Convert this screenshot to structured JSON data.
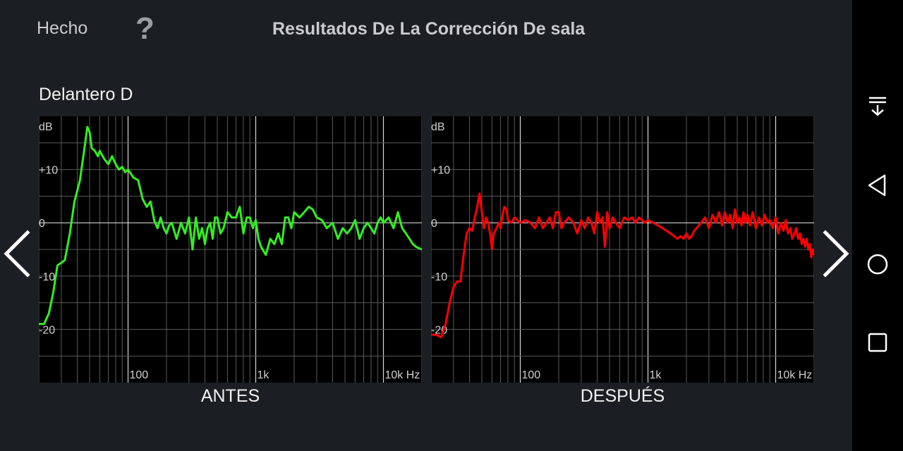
{
  "header": {
    "done_label": "Hecho",
    "help_label": "?",
    "title": "Resultados De La Corrección De sala"
  },
  "section": {
    "channel_label": "Delantero D"
  },
  "chart_data": [
    {
      "type": "line",
      "caption": "ANTES",
      "color": "#33ee22",
      "x_scale": "log",
      "xlim": [
        20,
        20000
      ],
      "ylim": [
        -30,
        20
      ],
      "y_unit_label": "dB",
      "y_ticks": [
        {
          "value": 10,
          "label": "+10"
        },
        {
          "value": 0,
          "label": "0"
        },
        {
          "value": -10,
          "label": "-10"
        },
        {
          "value": -20,
          "label": "-20"
        }
      ],
      "x_ticks": [
        {
          "value": 100,
          "label": "100"
        },
        {
          "value": 1000,
          "label": "1k"
        },
        {
          "value": 10000,
          "label": "10k Hz"
        }
      ],
      "grid": true,
      "series": [
        {
          "x": [
            20,
            22,
            24,
            26,
            28,
            30,
            32,
            35,
            38,
            40,
            42,
            45,
            48,
            50,
            52,
            55,
            58,
            60,
            65,
            70,
            75,
            80,
            85,
            90,
            95,
            100,
            110,
            120,
            130,
            140,
            150,
            160,
            170,
            180,
            190,
            200,
            210,
            220,
            240,
            260,
            280,
            300,
            320,
            340,
            360,
            380,
            400,
            420,
            440,
            460,
            480,
            500,
            530,
            560,
            600,
            650,
            700,
            750,
            800,
            850,
            900,
            950,
            1000,
            1050,
            1100,
            1200,
            1300,
            1400,
            1500,
            1600,
            1700,
            1800,
            1900,
            2000,
            2200,
            2400,
            2600,
            2800,
            3000,
            3300,
            3600,
            4000,
            4400,
            4800,
            5200,
            5600,
            6000,
            6500,
            7000,
            7500,
            8000,
            8500,
            9000,
            9500,
            10000,
            11000,
            12000,
            13000,
            14000,
            15000,
            16000,
            17000,
            18000,
            20000
          ],
          "y": [
            -19,
            -19,
            -17,
            -13,
            -8,
            -7.5,
            -7,
            -2,
            4,
            6,
            8,
            13,
            18,
            17,
            14,
            13.5,
            12.5,
            13.5,
            12,
            11,
            12.5,
            11,
            10,
            10.5,
            9.5,
            10,
            8.5,
            8,
            4.5,
            3,
            4,
            0.5,
            -1,
            1,
            -1,
            -2,
            -0.5,
            0,
            -3,
            0,
            -2,
            1,
            -5,
            1,
            -3,
            -1,
            -4,
            -1,
            0,
            -3,
            1,
            1,
            -2,
            -1,
            2,
            1,
            1,
            3,
            -2,
            1,
            1,
            -1,
            0.5,
            -3,
            -4.5,
            -6,
            -3,
            -4,
            -2,
            -4,
            1,
            1,
            -1,
            2,
            1,
            2,
            3,
            2.5,
            1,
            0.5,
            -1,
            0,
            -3,
            -1,
            -2,
            -1,
            0.5,
            -3,
            -1,
            0,
            -1,
            -2,
            0,
            1,
            0,
            1,
            -1,
            2,
            -1,
            -2,
            -3,
            -4,
            -4.5,
            -5
          ]
        }
      ]
    },
    {
      "type": "line",
      "caption": "DESPUÉS",
      "color": "#ff0000",
      "x_scale": "log",
      "xlim": [
        20,
        20000
      ],
      "ylim": [
        -30,
        20
      ],
      "y_unit_label": "dB",
      "y_ticks": [
        {
          "value": 10,
          "label": "+10"
        },
        {
          "value": 0,
          "label": "0"
        },
        {
          "value": -10,
          "label": "-10"
        },
        {
          "value": -20,
          "label": "-20"
        }
      ],
      "x_ticks": [
        {
          "value": 100,
          "label": "100"
        },
        {
          "value": 1000,
          "label": "1k"
        },
        {
          "value": 10000,
          "label": "10k Hz"
        }
      ],
      "grid": true,
      "series": [
        {
          "x": [
            20,
            22,
            24,
            26,
            28,
            30,
            32,
            34,
            36,
            38,
            40,
            42,
            44,
            46,
            48,
            50,
            52,
            54,
            56,
            58,
            60,
            62,
            65,
            68,
            70,
            72,
            75,
            78,
            80,
            85,
            90,
            95,
            100,
            110,
            120,
            130,
            140,
            150,
            160,
            170,
            180,
            190,
            200,
            210,
            220,
            240,
            260,
            280,
            300,
            320,
            340,
            360,
            380,
            400,
            420,
            440,
            460,
            480,
            500,
            530,
            560,
            600,
            650,
            700,
            750,
            800,
            850,
            900,
            950,
            1000,
            1100,
            1200,
            1300,
            1400,
            1500,
            1600,
            1700,
            1800,
            1900,
            2000,
            2100,
            2200,
            2300,
            2400,
            2500,
            2600,
            2800,
            3000,
            3200,
            3400,
            3600,
            3800,
            4000,
            4200,
            4400,
            4600,
            4800,
            5000,
            5200,
            5400,
            5600,
            5800,
            6000,
            6300,
            6600,
            7000,
            7400,
            7800,
            8200,
            8600,
            9000,
            9500,
            10000,
            10500,
            11000,
            11500,
            12000,
            12500,
            13000,
            13500,
            14000,
            14500,
            15000,
            15500,
            16000,
            16500,
            17000,
            17500,
            18000,
            18500,
            19000,
            19500,
            20000
          ],
          "y": [
            -21,
            -21,
            -21.5,
            -19,
            -15,
            -12,
            -11,
            -11,
            -6,
            -2,
            -1,
            -1.5,
            1,
            3,
            5.5,
            2,
            -1,
            1,
            0,
            -2,
            -5,
            -2,
            -1,
            0,
            -1,
            1,
            3,
            2.5,
            0.5,
            0,
            1,
            0.5,
            0,
            0.5,
            0,
            -1,
            1,
            -1,
            0,
            1,
            -1,
            2,
            2,
            -1,
            0,
            1,
            0,
            -2,
            0.5,
            -1,
            1,
            0,
            -2,
            2,
            0,
            1,
            -4.5,
            2,
            -1,
            1,
            0,
            -1,
            1,
            0.5,
            1,
            0,
            1,
            0.5,
            0,
            0.5,
            0,
            -0.5,
            -1,
            -1.5,
            -2,
            -2.5,
            -3,
            -2.5,
            -3,
            -2,
            -3,
            -2.5,
            -1.5,
            -1,
            -0.5,
            0,
            1,
            -1,
            1.5,
            0,
            2,
            -0.5,
            2,
            0,
            1.5,
            -1,
            2.5,
            0,
            1,
            -0.5,
            2,
            0,
            1.5,
            -0.5,
            2,
            -1,
            1,
            -0.5,
            1.5,
            0,
            0.5,
            -1,
            1,
            -2,
            0,
            -1.5,
            0.5,
            -2,
            -1,
            -3,
            -2,
            -1,
            -3,
            -2,
            -4,
            -3,
            -4.5,
            -3,
            -5,
            -4,
            -6.5,
            -5,
            -6
          ]
        }
      ]
    }
  ],
  "system_nav": {
    "icons": [
      "notification-pulldown-icon",
      "back-triangle-icon",
      "home-circle-icon",
      "recents-square-icon"
    ]
  }
}
